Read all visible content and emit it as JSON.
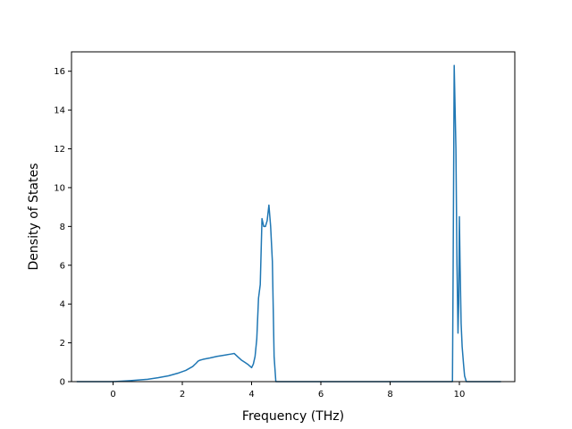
{
  "chart_data": {
    "type": "line",
    "title": "",
    "xlabel": "Frequency (THz)",
    "ylabel": "Density of States",
    "xlim": [
      -1.2,
      11.6
    ],
    "ylim": [
      0,
      17
    ],
    "xticks": [
      0,
      2,
      4,
      6,
      8,
      10
    ],
    "yticks": [
      0,
      2,
      4,
      6,
      8,
      10,
      12,
      14,
      16
    ],
    "grid": false,
    "legend": "none",
    "series": [
      {
        "color": "#1f77b4",
        "x": [
          -1.05,
          -0.5,
          0.0,
          0.5,
          1.0,
          1.3,
          1.6,
          1.9,
          2.1,
          2.3,
          2.4,
          2.45,
          2.5,
          2.6,
          2.8,
          3.0,
          3.2,
          3.4,
          3.5,
          3.6,
          3.7,
          3.8,
          3.9,
          4.0,
          4.05,
          4.1,
          4.15,
          4.2,
          4.25,
          4.3,
          4.35,
          4.4,
          4.45,
          4.5,
          4.55,
          4.6,
          4.65,
          4.7,
          4.8,
          6.0,
          8.0,
          9.8,
          9.82,
          9.85,
          9.9,
          9.93,
          9.96,
          9.98,
          10.0,
          10.02,
          10.05,
          10.08,
          10.12,
          10.15,
          10.2,
          10.5,
          11.2
        ],
        "y": [
          0,
          0,
          0,
          0.05,
          0.12,
          0.2,
          0.3,
          0.45,
          0.58,
          0.78,
          0.95,
          1.05,
          1.1,
          1.15,
          1.22,
          1.3,
          1.36,
          1.42,
          1.45,
          1.28,
          1.12,
          1.0,
          0.88,
          0.72,
          0.9,
          1.3,
          2.2,
          4.3,
          5.0,
          8.4,
          8.0,
          8.0,
          8.3,
          9.1,
          8.0,
          6.2,
          1.3,
          0.0,
          0,
          0,
          0,
          0,
          6.0,
          16.3,
          12.0,
          6.0,
          2.5,
          4.0,
          8.5,
          6.0,
          3.0,
          1.8,
          0.9,
          0.3,
          0,
          0,
          0
        ]
      }
    ]
  }
}
